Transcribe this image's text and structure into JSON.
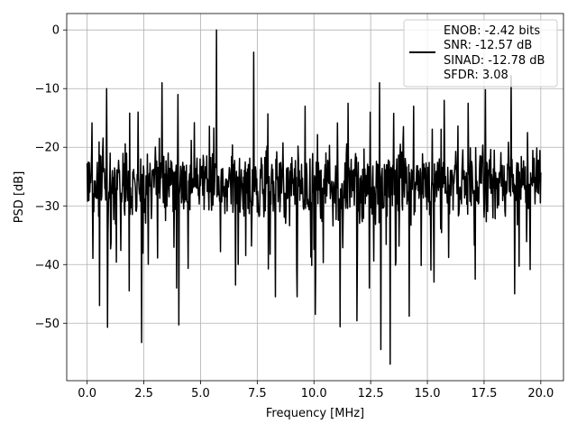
{
  "chart_data": {
    "type": "line",
    "title": "",
    "xlabel": "Frequency [MHz]",
    "ylabel": "PSD [dB]",
    "xlim": [
      -0.9,
      21.0
    ],
    "ylim": [
      -59.8,
      2.8
    ],
    "xticks": [
      0.0,
      2.5,
      5.0,
      7.5,
      10.0,
      12.5,
      15.0,
      17.5,
      20.0
    ],
    "xtick_labels": [
      "0.0",
      "2.5",
      "5.0",
      "7.5",
      "10.0",
      "12.5",
      "15.0",
      "17.5",
      "20.0"
    ],
    "yticks": [
      0,
      -10,
      -20,
      -30,
      -40,
      -50
    ],
    "ytick_labels": [
      "0",
      "−10",
      "−20",
      "−30",
      "−40",
      "−50"
    ],
    "grid": true,
    "legend_position": "upper-right",
    "legend_entries": [
      "ENOB: -2.42 bits",
      "SNR: -12.57 dB",
      "SINAD: -12.78 dB",
      "SFDR: 3.08"
    ],
    "series_color": "#000000",
    "series": [
      {
        "x_start": 0.0,
        "x_end": 20.0,
        "num_points": 1025,
        "baseline_db": -26.0,
        "noise_band_db": [
          -36.0,
          -17.0
        ],
        "notable_peaks": [
          {
            "x": 5.7,
            "y": 0.0
          },
          {
            "x": 7.35,
            "y": -3.8
          },
          {
            "x": 0.85,
            "y": -10.0
          },
          {
            "x": 3.3,
            "y": -9.0
          },
          {
            "x": 12.9,
            "y": -9.0
          },
          {
            "x": 13.35,
            "y": -8.0
          },
          {
            "x": 17.55,
            "y": -10.2
          },
          {
            "x": 18.7,
            "y": -7.8
          },
          {
            "x": 4.0,
            "y": -11.0
          },
          {
            "x": 9.6,
            "y": -13.0
          },
          {
            "x": 11.5,
            "y": -12.5
          },
          {
            "x": 16.8,
            "y": -12.5
          },
          {
            "x": 15.75,
            "y": -12.0
          },
          {
            "x": 14.4,
            "y": -13.0
          }
        ],
        "notable_dips": [
          {
            "x": 2.4,
            "y": -53.3
          },
          {
            "x": 0.9,
            "y": -50.7
          },
          {
            "x": 4.05,
            "y": -50.3
          },
          {
            "x": 13.35,
            "y": -57.0
          },
          {
            "x": 12.95,
            "y": -54.5
          },
          {
            "x": 10.05,
            "y": -48.5
          },
          {
            "x": 11.15,
            "y": -50.6
          },
          {
            "x": 11.9,
            "y": -49.6
          },
          {
            "x": 14.2,
            "y": -48.8
          },
          {
            "x": 0.55,
            "y": -47.0
          },
          {
            "x": 1.85,
            "y": -44.5
          },
          {
            "x": 3.95,
            "y": -44.0
          },
          {
            "x": 6.55,
            "y": -43.5
          },
          {
            "x": 8.3,
            "y": -45.5
          },
          {
            "x": 9.25,
            "y": -45.5
          },
          {
            "x": 12.45,
            "y": -44.0
          },
          {
            "x": 18.85,
            "y": -45.0
          },
          {
            "x": 15.3,
            "y": -43.0
          },
          {
            "x": 17.1,
            "y": -42.5
          }
        ]
      }
    ]
  }
}
